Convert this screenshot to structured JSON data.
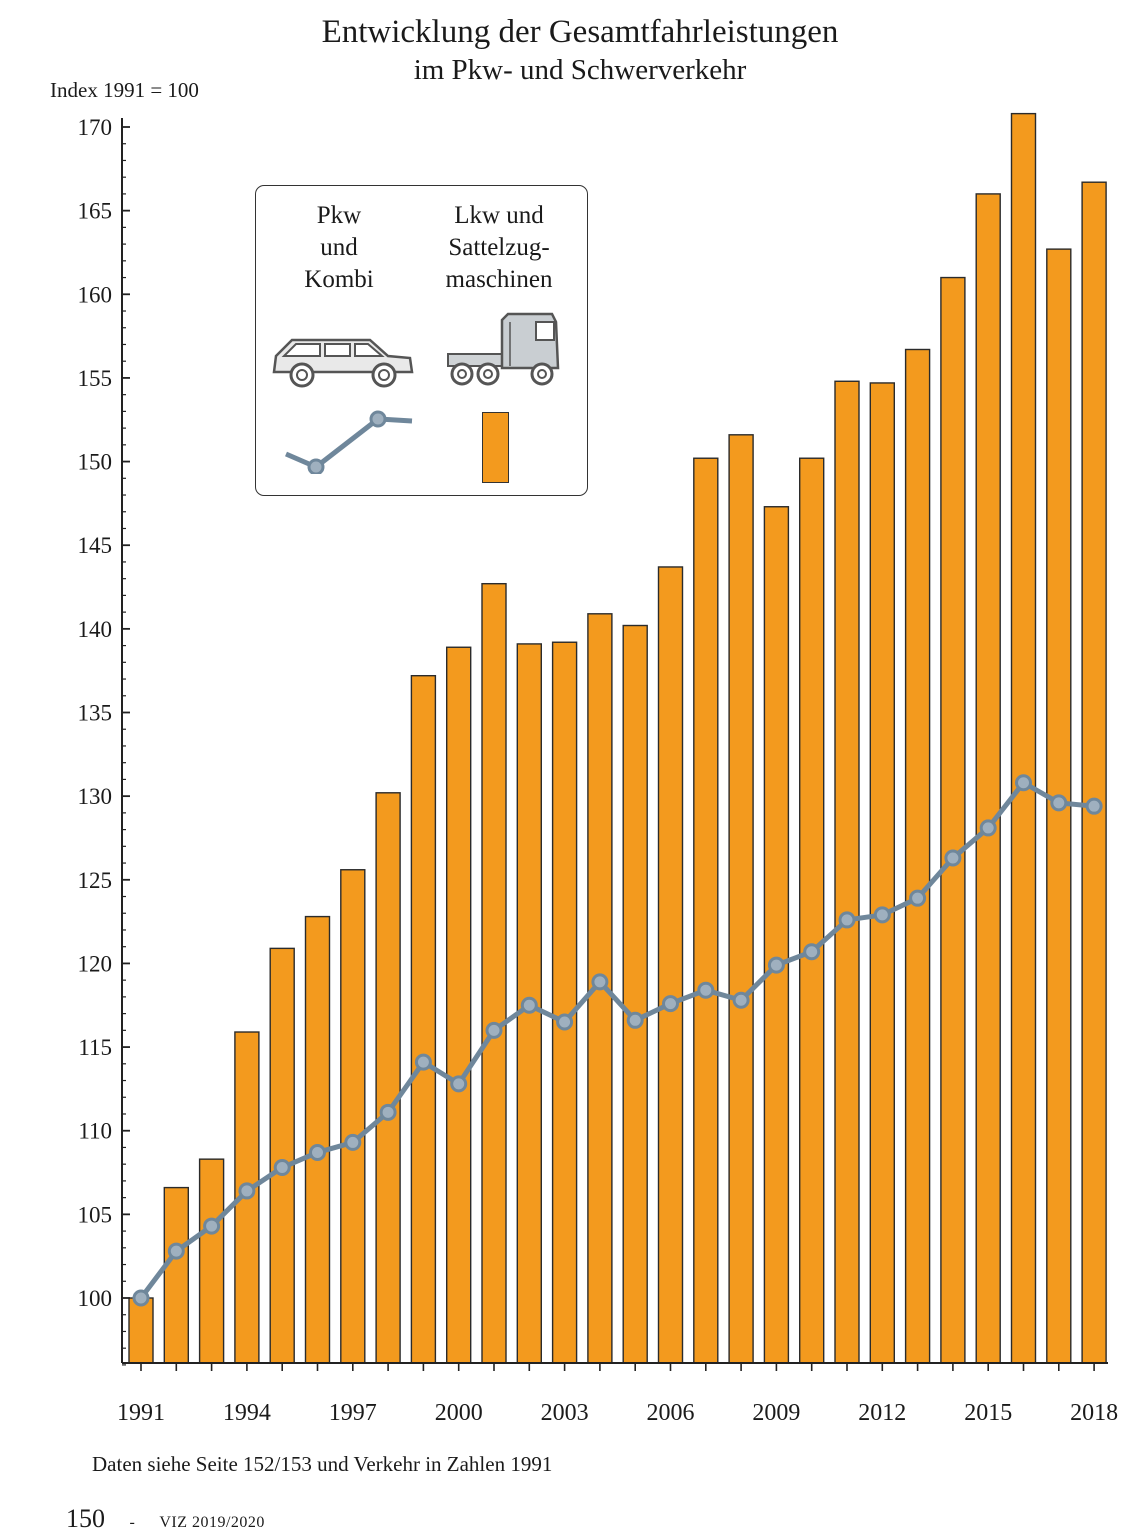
{
  "chart_data": {
    "type": "bar",
    "title": "Entwicklung der Gesamtfahrleistungen",
    "subtitle": "im Pkw- und Schwerverkehr",
    "ylabel": "Index 1991 = 100",
    "ylim": [
      96,
      170
    ],
    "yticks": [
      100,
      105,
      110,
      115,
      120,
      125,
      130,
      135,
      140,
      145,
      150,
      155,
      160,
      165,
      170
    ],
    "x": [
      1991,
      1992,
      1993,
      1994,
      1995,
      1996,
      1997,
      1998,
      1999,
      2000,
      2001,
      2002,
      2003,
      2004,
      2005,
      2006,
      2007,
      2008,
      2009,
      2010,
      2011,
      2012,
      2013,
      2014,
      2015,
      2016,
      2017,
      2018
    ],
    "xtick_labels": [
      "1991",
      "1994",
      "1997",
      "2000",
      "2003",
      "2006",
      "2009",
      "2012",
      "2015",
      "2018"
    ],
    "grid": false,
    "legend_position": "top-left",
    "series": [
      {
        "name": "Lkw und Sattelzugmaschinen",
        "kind": "bar",
        "color": "#F39A1E",
        "values": [
          100.0,
          106.6,
          108.3,
          115.9,
          120.9,
          122.8,
          125.6,
          130.2,
          137.2,
          138.9,
          142.7,
          139.1,
          139.2,
          140.9,
          140.2,
          143.7,
          150.2,
          151.6,
          147.3,
          150.2,
          154.8,
          154.7,
          156.7,
          161.0,
          166.0,
          170.8,
          162.7,
          166.7
        ]
      },
      {
        "name": "Pkw und Kombi",
        "kind": "line",
        "color": "#6F879B",
        "values": [
          100.0,
          102.8,
          104.3,
          106.4,
          107.8,
          108.7,
          109.3,
          111.1,
          114.1,
          112.8,
          116.0,
          117.5,
          116.5,
          118.9,
          116.6,
          117.6,
          118.4,
          117.8,
          119.9,
          120.7,
          122.6,
          122.9,
          123.9,
          126.3,
          128.1,
          130.8,
          129.6,
          129.4
        ]
      }
    ]
  },
  "legend": {
    "pkw_lines": [
      "Pkw",
      "und",
      "Kombi"
    ],
    "lkw_lines": [
      "Lkw und",
      "Sattelzug-",
      "maschinen"
    ],
    "car_icon": "car-icon",
    "truck_icon": "truck-icon"
  },
  "footnote": "Daten siehe Seite 152/153 und Verkehr in Zahlen 1991",
  "page_number": "150",
  "page_separator": "-",
  "publication": "VIZ 2019/2020"
}
